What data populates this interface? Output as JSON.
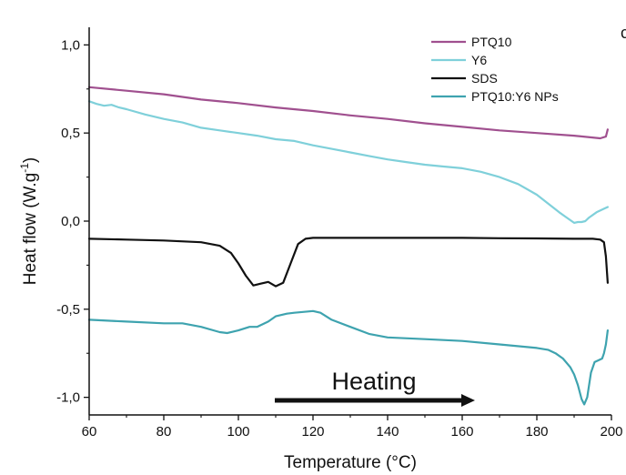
{
  "chart_data": {
    "type": "line",
    "title": "",
    "panel_label": "c",
    "xlabel": "Temperature (°C)",
    "ylabel": "Heat flow (W.g⁻¹)",
    "ylabel_main": "Heat flow (W.g",
    "ylabel_sup": "-1",
    "ylabel_close": ")",
    "xlim": [
      60,
      200
    ],
    "ylim": [
      -1.1,
      1.1
    ],
    "xticks": [
      60,
      80,
      100,
      120,
      140,
      160,
      180,
      200
    ],
    "yticks": [
      1.0,
      0.5,
      0.0,
      -0.5,
      -1.0
    ],
    "xtick_labels": [
      "60",
      "80",
      "100",
      "120",
      "140",
      "160",
      "180",
      "200"
    ],
    "ytick_labels": [
      "1,0",
      "0,5",
      "0,0",
      "-0,5",
      "-1,0"
    ],
    "grid": false,
    "legend_position": "top-right",
    "annotation": {
      "text": "Heating",
      "arrow": "right"
    },
    "series": [
      {
        "name": "PTQ10",
        "color": "#a0508f",
        "x": [
          60,
          70,
          80,
          90,
          100,
          110,
          120,
          130,
          140,
          150,
          160,
          170,
          180,
          190,
          197,
          198.5,
          199
        ],
        "y": [
          0.76,
          0.74,
          0.72,
          0.69,
          0.67,
          0.645,
          0.625,
          0.6,
          0.58,
          0.555,
          0.535,
          0.515,
          0.5,
          0.485,
          0.47,
          0.48,
          0.52
        ]
      },
      {
        "name": "Y6",
        "color": "#7fd0da",
        "x": [
          60,
          62,
          64,
          66,
          68,
          70,
          75,
          80,
          85,
          90,
          95,
          100,
          105,
          110,
          115,
          120,
          125,
          130,
          135,
          140,
          145,
          150,
          155,
          160,
          165,
          170,
          175,
          180,
          183,
          186,
          188,
          190,
          191,
          192,
          193,
          194,
          196,
          198,
          199
        ],
        "y": [
          0.68,
          0.665,
          0.655,
          0.66,
          0.645,
          0.635,
          0.605,
          0.58,
          0.56,
          0.53,
          0.515,
          0.5,
          0.485,
          0.465,
          0.455,
          0.43,
          0.41,
          0.39,
          0.37,
          0.35,
          0.335,
          0.32,
          0.31,
          0.3,
          0.28,
          0.25,
          0.21,
          0.15,
          0.1,
          0.05,
          0.02,
          -0.01,
          -0.005,
          -0.005,
          0.0,
          0.02,
          0.05,
          0.07,
          0.08
        ]
      },
      {
        "name": "SDS",
        "color": "#111111",
        "x": [
          60,
          70,
          80,
          90,
          95,
          98,
          100,
          102,
          104,
          106,
          108,
          110,
          112,
          114,
          116,
          118,
          120,
          130,
          140,
          150,
          160,
          170,
          180,
          190,
          195,
          197,
          198,
          198.5,
          199
        ],
        "y": [
          -0.1,
          -0.105,
          -0.11,
          -0.12,
          -0.14,
          -0.18,
          -0.24,
          -0.31,
          -0.365,
          -0.355,
          -0.345,
          -0.37,
          -0.35,
          -0.24,
          -0.13,
          -0.1,
          -0.095,
          -0.095,
          -0.095,
          -0.095,
          -0.095,
          -0.097,
          -0.098,
          -0.1,
          -0.1,
          -0.105,
          -0.12,
          -0.2,
          -0.35
        ]
      },
      {
        "name": "PTQ10:Y6 NPs",
        "color": "#3ea3af",
        "x": [
          60,
          70,
          80,
          85,
          90,
          95,
          97,
          100,
          103,
          105,
          108,
          110,
          113,
          115,
          120,
          122,
          125,
          130,
          135,
          140,
          150,
          160,
          170,
          180,
          183,
          185,
          187,
          189,
          190,
          191,
          192,
          192.7,
          193.5,
          194.5,
          195.5,
          196.5,
          197.5,
          198,
          198.5,
          199
        ],
        "y": [
          -0.56,
          -0.57,
          -0.58,
          -0.58,
          -0.6,
          -0.63,
          -0.635,
          -0.62,
          -0.6,
          -0.6,
          -0.57,
          -0.54,
          -0.525,
          -0.52,
          -0.51,
          -0.52,
          -0.56,
          -0.6,
          -0.64,
          -0.66,
          -0.67,
          -0.68,
          -0.7,
          -0.72,
          -0.73,
          -0.75,
          -0.78,
          -0.83,
          -0.87,
          -0.93,
          -1.01,
          -1.04,
          -1.0,
          -0.86,
          -0.8,
          -0.79,
          -0.78,
          -0.75,
          -0.7,
          -0.62
        ]
      }
    ]
  }
}
